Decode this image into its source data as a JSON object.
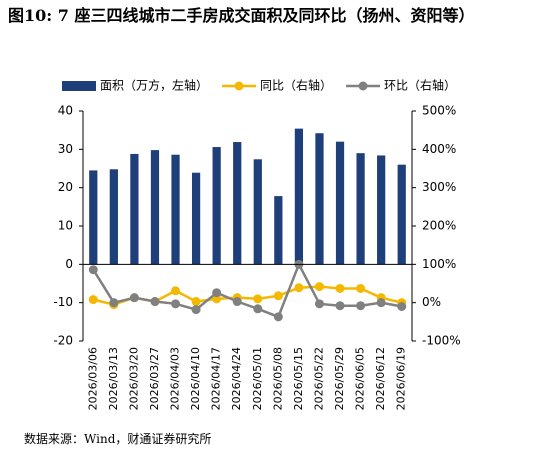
{
  "chart_data": {
    "type": "bar-line",
    "title": "图10: 7 座三四线城市二手房成交面积及同环比（扬州、资阳等）",
    "source": "数据来源：Wind，财通证券研究所",
    "categories": [
      "2026/03/06",
      "2026/03/13",
      "2026/03/20",
      "2026/03/27",
      "2026/04/03",
      "2026/04/10",
      "2026/04/17",
      "2026/04/24",
      "2026/05/01",
      "2026/05/08",
      "2026/05/15",
      "2026/05/22",
      "2026/05/29",
      "2026/06/05",
      "2026/06/12",
      "2026/06/19"
    ],
    "series": [
      {
        "name": "面积（万方，左轴）",
        "color": "#1f3f7a",
        "kind": "bar",
        "values": [
          24.5,
          24.8,
          28.8,
          29.8,
          28.6,
          23.9,
          30.6,
          31.9,
          27.4,
          17.8,
          35.4,
          34.2,
          32.0,
          29.0,
          28.4,
          26.0
        ]
      },
      {
        "name": "同比（右轴）",
        "color": "#f5b800",
        "kind": "line",
        "axis": "y2",
        "values": [
          8,
          -5,
          13,
          3,
          31,
          3,
          10,
          13,
          10,
          18,
          39,
          42,
          37,
          37,
          13,
          0
        ]
      },
      {
        "name": "环比（右轴）",
        "color": "#808080",
        "kind": "line",
        "axis": "y2",
        "values": [
          86,
          0,
          13,
          3,
          -3,
          -18,
          26,
          3,
          -16,
          -37,
          100,
          -3,
          -8,
          -8,
          0,
          -10
        ]
      }
    ],
    "ylim": [
      -20,
      40
    ],
    "yticks": [
      -20,
      -10,
      0,
      10,
      20,
      30,
      40
    ],
    "y2lim": [
      -100,
      500
    ],
    "y2ticks": [
      {
        "value": -100,
        "label": "-100%"
      },
      {
        "value": 0,
        "label": "0%"
      },
      {
        "value": 100,
        "label": "100%"
      },
      {
        "value": 200,
        "label": "200%"
      },
      {
        "value": 300,
        "label": "300%"
      },
      {
        "value": 400,
        "label": "400%"
      },
      {
        "value": 500,
        "label": "500%"
      }
    ],
    "legend": "top"
  }
}
